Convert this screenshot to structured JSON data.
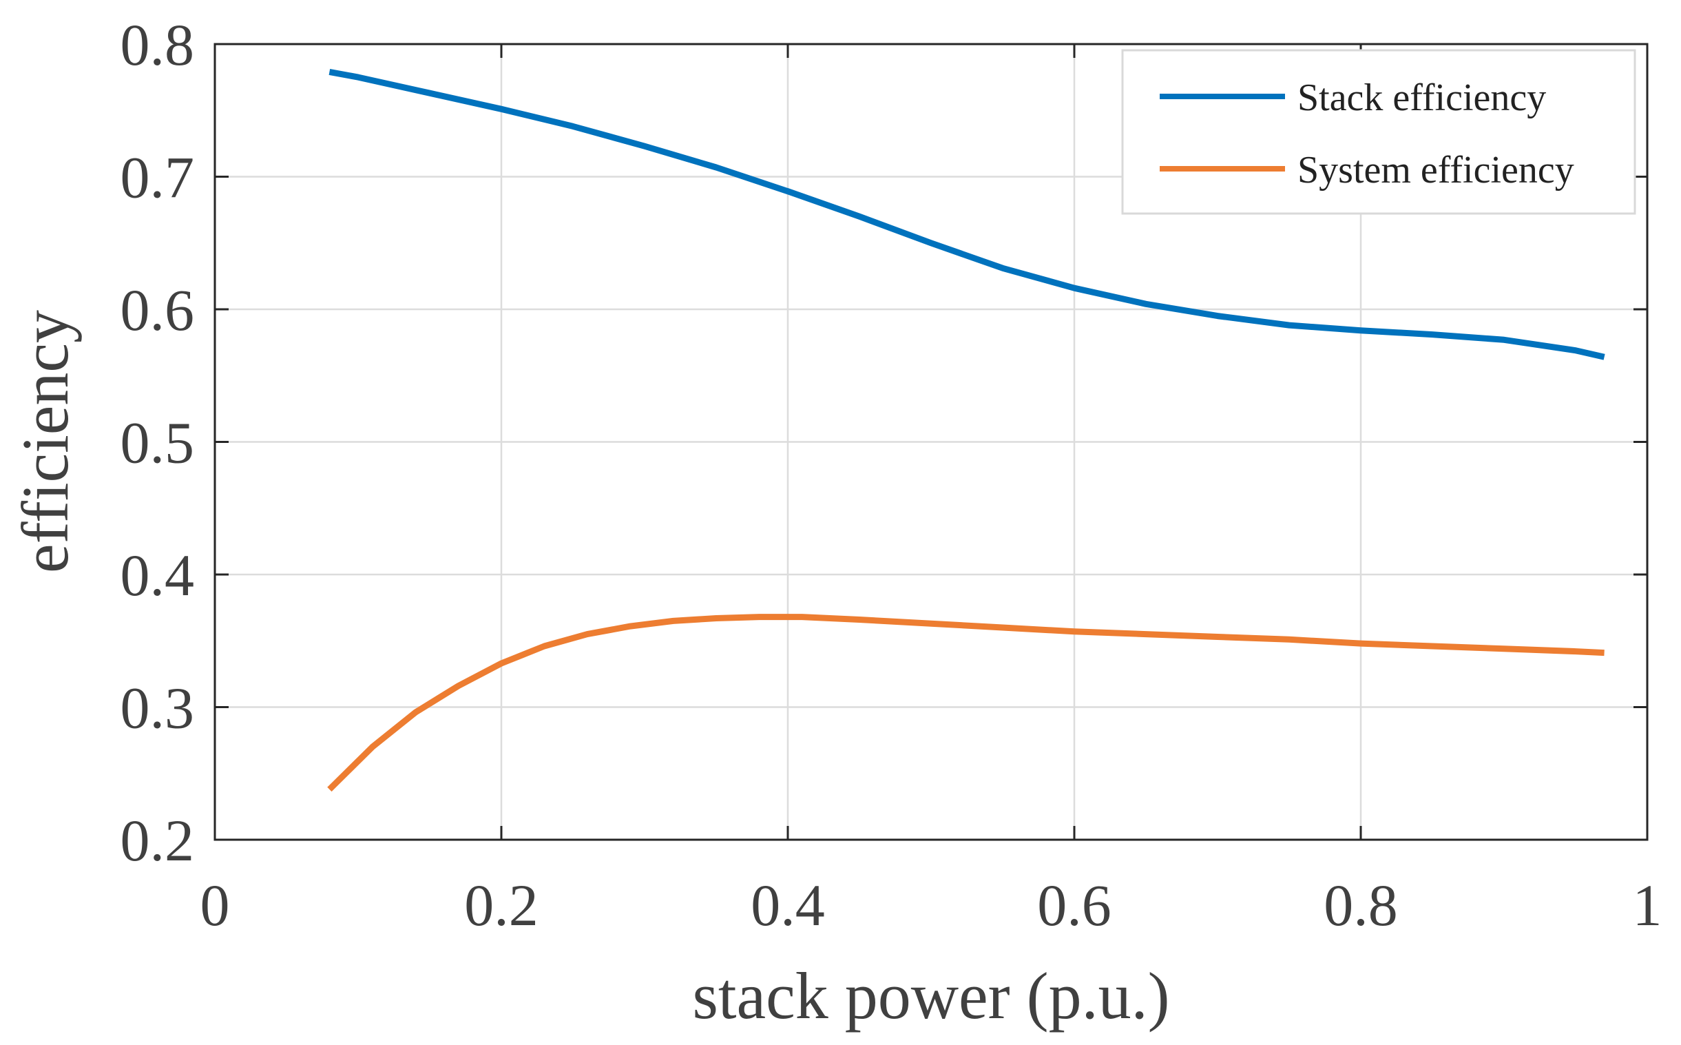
{
  "chart_data": {
    "type": "line",
    "title": "",
    "xlabel": "stack power (p.u.)",
    "ylabel": "efficiency",
    "xlim": [
      0,
      1
    ],
    "ylim": [
      0.2,
      0.8
    ],
    "grid": true,
    "legend_position": "top-right",
    "xticks": [
      0,
      0.2,
      0.4,
      0.6,
      0.8,
      1
    ],
    "xtick_labels": [
      "0",
      "0.2",
      "0.4",
      "0.6",
      "0.8",
      "1"
    ],
    "yticks": [
      0.2,
      0.3,
      0.4,
      0.5,
      0.6,
      0.7,
      0.8
    ],
    "ytick_labels": [
      "0.2",
      "0.3",
      "0.4",
      "0.5",
      "0.6",
      "0.7",
      "0.8"
    ],
    "series": [
      {
        "name": "Stack efficiency",
        "color": "#0072BD",
        "x": [
          0.08,
          0.1,
          0.15,
          0.2,
          0.25,
          0.3,
          0.35,
          0.4,
          0.45,
          0.5,
          0.55,
          0.6,
          0.65,
          0.7,
          0.75,
          0.8,
          0.85,
          0.9,
          0.95,
          0.97
        ],
        "y": [
          0.779,
          0.775,
          0.763,
          0.751,
          0.738,
          0.723,
          0.707,
          0.689,
          0.67,
          0.65,
          0.631,
          0.616,
          0.604,
          0.595,
          0.588,
          0.584,
          0.581,
          0.577,
          0.569,
          0.564
        ]
      },
      {
        "name": "System efficiency",
        "color": "#ED7D31",
        "x": [
          0.08,
          0.11,
          0.14,
          0.17,
          0.2,
          0.23,
          0.26,
          0.29,
          0.32,
          0.35,
          0.38,
          0.41,
          0.45,
          0.5,
          0.55,
          0.6,
          0.65,
          0.7,
          0.75,
          0.8,
          0.85,
          0.9,
          0.95,
          0.97
        ],
        "y": [
          0.238,
          0.27,
          0.296,
          0.316,
          0.333,
          0.346,
          0.355,
          0.361,
          0.365,
          0.367,
          0.368,
          0.368,
          0.366,
          0.363,
          0.36,
          0.357,
          0.355,
          0.353,
          0.351,
          0.348,
          0.346,
          0.344,
          0.342,
          0.341
        ]
      }
    ]
  }
}
